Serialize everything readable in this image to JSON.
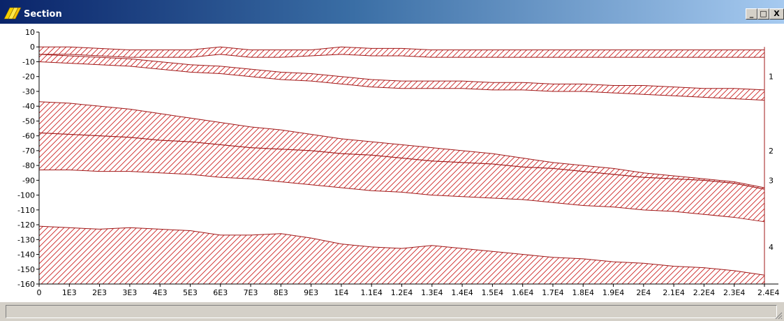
{
  "window": {
    "title": "Section",
    "minimize_label": "_",
    "maximize_label": "□",
    "close_label": "X"
  },
  "colors": {
    "layer_fill": "#cc2222",
    "layer_line": "#a01818",
    "title_gradient_start": "#0a246a",
    "title_gradient_end": "#a6caf0"
  },
  "chart_data": {
    "type": "area",
    "title": "",
    "xlabel": "",
    "ylabel": "",
    "xlim": [
      0,
      24000
    ],
    "ylim": [
      -160,
      10
    ],
    "x_ticks": [
      {
        "value": 0,
        "label": "0"
      },
      {
        "value": 1000,
        "label": "1E3"
      },
      {
        "value": 2000,
        "label": "2E3"
      },
      {
        "value": 3000,
        "label": "3E3"
      },
      {
        "value": 4000,
        "label": "4E3"
      },
      {
        "value": 5000,
        "label": "5E3"
      },
      {
        "value": 6000,
        "label": "6E3"
      },
      {
        "value": 7000,
        "label": "7E3"
      },
      {
        "value": 8000,
        "label": "8E3"
      },
      {
        "value": 9000,
        "label": "9E3"
      },
      {
        "value": 10000,
        "label": "1E4"
      },
      {
        "value": 11000,
        "label": "1.1E4"
      },
      {
        "value": 12000,
        "label": "1.2E4"
      },
      {
        "value": 13000,
        "label": "1.3E4"
      },
      {
        "value": 14000,
        "label": "1.4E4"
      },
      {
        "value": 15000,
        "label": "1.5E4"
      },
      {
        "value": 16000,
        "label": "1.6E4"
      },
      {
        "value": 17000,
        "label": "1.7E4"
      },
      {
        "value": 18000,
        "label": "1.8E4"
      },
      {
        "value": 19000,
        "label": "1.9E4"
      },
      {
        "value": 20000,
        "label": "2E4"
      },
      {
        "value": 21000,
        "label": "2.1E4"
      },
      {
        "value": 22000,
        "label": "2.2E4"
      },
      {
        "value": 23000,
        "label": "2.3E4"
      },
      {
        "value": 24000,
        "label": "2.4E4"
      }
    ],
    "y_ticks": [
      {
        "value": 10,
        "label": "10"
      },
      {
        "value": 0,
        "label": "0"
      },
      {
        "value": -10,
        "label": "-10"
      },
      {
        "value": -20,
        "label": "-20"
      },
      {
        "value": -30,
        "label": "-30"
      },
      {
        "value": -40,
        "label": "-40"
      },
      {
        "value": -50,
        "label": "-50"
      },
      {
        "value": -60,
        "label": "-60"
      },
      {
        "value": -70,
        "label": "-70"
      },
      {
        "value": -80,
        "label": "-80"
      },
      {
        "value": -90,
        "label": "-90"
      },
      {
        "value": -100,
        "label": "-100"
      },
      {
        "value": -110,
        "label": "-110"
      },
      {
        "value": -120,
        "label": "-120"
      },
      {
        "value": -130,
        "label": "-130"
      },
      {
        "value": -140,
        "label": "-140"
      },
      {
        "value": -150,
        "label": "-150"
      },
      {
        "value": -160,
        "label": "-160"
      }
    ],
    "grid": false,
    "fill_pattern": "diagonal-hatch",
    "x": [
      0,
      1000,
      2000,
      3000,
      4000,
      5000,
      6000,
      7000,
      8000,
      9000,
      10000,
      11000,
      12000,
      13000,
      14000,
      15000,
      16000,
      17000,
      18000,
      19000,
      20000,
      21000,
      22000,
      23000,
      24000
    ],
    "layers": [
      {
        "name": "",
        "top": [
          0,
          0,
          -1,
          -2,
          -2,
          -2,
          0,
          -2,
          -2,
          -2,
          0,
          -1,
          -1,
          -2,
          -2,
          -2,
          -2,
          -2,
          -2,
          -2,
          -2,
          -2,
          -2,
          -2,
          -2
        ],
        "bottom": [
          -5,
          -5,
          -6,
          -7,
          -7,
          -7,
          -5,
          -7,
          -7,
          -6,
          -5,
          -6,
          -6,
          -7,
          -7,
          -7,
          -7,
          -7,
          -7,
          -7,
          -7,
          -7,
          -7,
          -7,
          -7
        ]
      },
      {
        "name": "",
        "top": [
          -5,
          -6,
          -7,
          -8,
          -10,
          -12,
          -13,
          -15,
          -17,
          -18,
          -20,
          -22,
          -23,
          -23,
          -23,
          -24,
          -24,
          -25,
          -25,
          -26,
          -26,
          -27,
          -28,
          -28,
          -29
        ],
        "bottom": [
          -10,
          -11,
          -12,
          -13,
          -15,
          -17,
          -18,
          -20,
          -22,
          -23,
          -25,
          -27,
          -28,
          -28,
          -28,
          -29,
          -29,
          -30,
          -30,
          -31,
          -32,
          -33,
          -34,
          -35,
          -36
        ]
      },
      {
        "name": "",
        "top": [
          -37,
          -38,
          -40,
          -42,
          -45,
          -48,
          -51,
          -54,
          -56,
          -59,
          -62,
          -64,
          -66,
          -68,
          -70,
          -72,
          -75,
          -78,
          -80,
          -82,
          -85,
          -87,
          -89,
          -91,
          -95
        ],
        "bottom": [
          -58,
          -59,
          -60,
          -61,
          -63,
          -64,
          -66,
          -68,
          -69,
          -70,
          -72,
          -73,
          -75,
          -77,
          -78,
          -79,
          -81,
          -82,
          -84,
          -86,
          -88,
          -89,
          -90,
          -92,
          -96
        ]
      },
      {
        "name": "",
        "top": [
          -58,
          -59,
          -60,
          -61,
          -63,
          -64,
          -66,
          -68,
          -69,
          -70,
          -72,
          -73,
          -75,
          -77,
          -78,
          -79,
          -81,
          -82,
          -84,
          -86,
          -88,
          -89,
          -90,
          -92,
          -96
        ],
        "bottom": [
          -83,
          -83,
          -84,
          -84,
          -85,
          -86,
          -88,
          -89,
          -91,
          -93,
          -95,
          -97,
          -98,
          -100,
          -101,
          -102,
          -103,
          -105,
          -107,
          -108,
          -110,
          -111,
          -113,
          -115,
          -118
        ]
      },
      {
        "name": "",
        "top": [
          -121,
          -122,
          -123,
          -122,
          -123,
          -124,
          -127,
          -127,
          -126,
          -129,
          -133,
          -135,
          -136,
          -134,
          -136,
          -138,
          -140,
          -142,
          -143,
          -145,
          -146,
          -148,
          -149,
          -151,
          -154
        ],
        "bottom": [
          -160,
          -160,
          -160,
          -160,
          -160,
          -160,
          -160,
          -160,
          -160,
          -160,
          -160,
          -160,
          -160,
          -160,
          -160,
          -160,
          -160,
          -160,
          -160,
          -160,
          -160,
          -160,
          -160,
          -160,
          -160
        ]
      }
    ],
    "right_edge_labels": [
      "1",
      "2",
      "3",
      "4"
    ]
  },
  "statusbar": {
    "text": ""
  }
}
